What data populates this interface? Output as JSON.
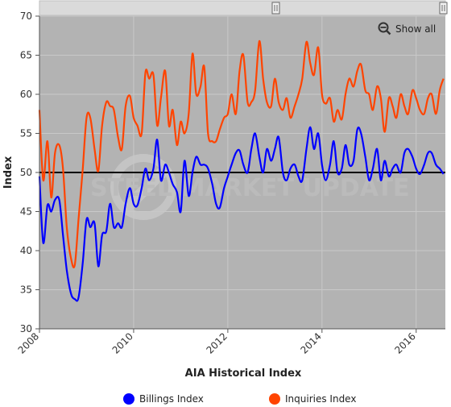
{
  "chart_data": {
    "type": "line",
    "title": "",
    "xlabel": "AIA Historical Index",
    "ylabel": "Index",
    "x_ticks": [
      "2008",
      "2010",
      "2012",
      "2014",
      "2016"
    ],
    "y_ticks": [
      "30",
      "35",
      "40",
      "45",
      "50",
      "55",
      "60",
      "65",
      "70"
    ],
    "xlim": [
      2008.0,
      2016.62
    ],
    "ylim": [
      30,
      70
    ],
    "reference_line": 50,
    "grid": true,
    "legend_position": "bottom",
    "watermark": "STEEL MARKET UPDATE",
    "series": [
      {
        "name": "Billings Index",
        "color": "#0000ff",
        "x": [
          2008.0,
          2008.08,
          2008.17,
          2008.25,
          2008.33,
          2008.42,
          2008.5,
          2008.58,
          2008.67,
          2008.75,
          2008.83,
          2008.92,
          2009.0,
          2009.08,
          2009.17,
          2009.25,
          2009.33,
          2009.42,
          2009.5,
          2009.58,
          2009.67,
          2009.75,
          2009.83,
          2009.92,
          2010.0,
          2010.08,
          2010.17,
          2010.25,
          2010.33,
          2010.42,
          2010.5,
          2010.58,
          2010.67,
          2010.75,
          2010.83,
          2010.92,
          2011.0,
          2011.08,
          2011.17,
          2011.25,
          2011.33,
          2011.42,
          2011.5,
          2011.58,
          2011.67,
          2011.75,
          2011.83,
          2011.92,
          2012.0,
          2012.08,
          2012.17,
          2012.25,
          2012.33,
          2012.42,
          2012.5,
          2012.58,
          2012.67,
          2012.75,
          2012.83,
          2012.92,
          2013.0,
          2013.08,
          2013.17,
          2013.25,
          2013.33,
          2013.42,
          2013.5,
          2013.58,
          2013.67,
          2013.75,
          2013.83,
          2013.92,
          2014.0,
          2014.08,
          2014.17,
          2014.25,
          2014.33,
          2014.42,
          2014.5,
          2014.58,
          2014.67,
          2014.75,
          2014.83,
          2014.92,
          2015.0,
          2015.08,
          2015.17,
          2015.25,
          2015.33,
          2015.42,
          2015.5,
          2015.58,
          2015.67,
          2015.75,
          2015.83,
          2015.92,
          2016.0,
          2016.08,
          2016.17,
          2016.25,
          2016.33,
          2016.42,
          2016.5,
          2016.58
        ],
        "values": [
          49.5,
          41.0,
          45.8,
          45.0,
          46.5,
          46.5,
          42.0,
          37.5,
          34.5,
          33.8,
          34.0,
          38.5,
          44.0,
          43.0,
          43.5,
          38.0,
          42.0,
          42.5,
          46.0,
          43.0,
          43.5,
          43.0,
          46.0,
          48.0,
          46.0,
          45.8,
          48.0,
          50.5,
          49.0,
          50.5,
          54.2,
          49.0,
          51.0,
          50.0,
          48.5,
          47.5,
          45.0,
          51.5,
          47.0,
          50.0,
          52.0,
          51.0,
          51.0,
          50.5,
          48.5,
          46.0,
          45.5,
          48.0,
          49.5,
          51.0,
          52.5,
          52.8,
          51.0,
          50.0,
          53.0,
          55.0,
          52.0,
          50.0,
          53.0,
          51.5,
          53.0,
          54.5,
          50.0,
          49.0,
          50.5,
          51.0,
          49.5,
          49.0,
          53.0,
          55.8,
          53.0,
          55.0,
          51.0,
          49.0,
          51.0,
          54.0,
          50.0,
          50.5,
          53.5,
          51.0,
          51.5,
          55.5,
          55.0,
          52.0,
          49.0,
          50.5,
          53.0,
          49.0,
          51.5,
          49.5,
          50.5,
          51.0,
          50.0,
          52.5,
          53.0,
          52.0,
          50.5,
          49.8,
          51.0,
          52.5,
          52.5,
          51.0,
          50.5,
          49.8
        ]
      },
      {
        "name": "Inquiries Index",
        "color": "#ff4400",
        "x": [
          2008.0,
          2008.08,
          2008.17,
          2008.25,
          2008.33,
          2008.42,
          2008.5,
          2008.58,
          2008.67,
          2008.75,
          2008.83,
          2008.92,
          2009.0,
          2009.08,
          2009.17,
          2009.25,
          2009.33,
          2009.42,
          2009.5,
          2009.58,
          2009.67,
          2009.75,
          2009.83,
          2009.92,
          2010.0,
          2010.08,
          2010.17,
          2010.25,
          2010.33,
          2010.42,
          2010.5,
          2010.58,
          2010.67,
          2010.75,
          2010.83,
          2010.92,
          2011.0,
          2011.08,
          2011.17,
          2011.25,
          2011.33,
          2011.42,
          2011.5,
          2011.58,
          2011.67,
          2011.75,
          2011.83,
          2011.92,
          2012.0,
          2012.08,
          2012.17,
          2012.25,
          2012.33,
          2012.42,
          2012.5,
          2012.58,
          2012.67,
          2012.75,
          2012.83,
          2012.92,
          2013.0,
          2013.08,
          2013.17,
          2013.25,
          2013.33,
          2013.42,
          2013.5,
          2013.58,
          2013.67,
          2013.75,
          2013.83,
          2013.92,
          2014.0,
          2014.08,
          2014.17,
          2014.25,
          2014.33,
          2014.42,
          2014.5,
          2014.58,
          2014.67,
          2014.75,
          2014.83,
          2014.92,
          2015.0,
          2015.08,
          2015.17,
          2015.25,
          2015.33,
          2015.42,
          2015.5,
          2015.58,
          2015.67,
          2015.75,
          2015.83,
          2015.92,
          2016.0,
          2016.08,
          2016.17,
          2016.25,
          2016.33,
          2016.42,
          2016.5,
          2016.58
        ],
        "values": [
          58.0,
          49.0,
          54.0,
          46.8,
          52.5,
          53.5,
          50.5,
          43.0,
          39.0,
          38.2,
          44.0,
          50.5,
          57.0,
          57.0,
          53.0,
          50.2,
          56.0,
          59.0,
          58.5,
          58.0,
          54.5,
          53.0,
          58.5,
          59.8,
          57.0,
          56.0,
          55.0,
          62.8,
          62.0,
          62.5,
          56.0,
          59.5,
          63.0,
          56.0,
          58.0,
          53.5,
          56.5,
          55.0,
          57.5,
          65.2,
          60.0,
          61.0,
          63.5,
          55.0,
          54.0,
          54.0,
          55.5,
          57.0,
          57.5,
          60.0,
          57.5,
          63.0,
          65.0,
          59.0,
          59.0,
          60.5,
          66.8,
          62.0,
          59.0,
          58.5,
          62.0,
          59.0,
          58.0,
          59.5,
          57.0,
          58.5,
          60.0,
          62.0,
          66.7,
          64.0,
          62.5,
          66.0,
          60.0,
          58.8,
          59.5,
          56.5,
          58.0,
          56.8,
          60.0,
          62.0,
          61.0,
          63.0,
          63.8,
          60.5,
          60.0,
          58.0,
          61.0,
          59.5,
          55.2,
          59.5,
          58.5,
          57.0,
          60.0,
          58.5,
          57.5,
          60.5,
          59.5,
          58.0,
          57.5,
          59.5,
          60.0,
          57.5,
          60.5,
          62.0
        ]
      }
    ]
  },
  "legend": {
    "items": [
      {
        "label": "Billings Index",
        "color": "#0000ff"
      },
      {
        "label": "Inquiries Index",
        "color": "#ff4400"
      }
    ]
  },
  "toolbar": {
    "show_all_label": "Show all",
    "show_all_icon": "zoom-out-magnifier-icon"
  },
  "scrollbar": {
    "handle_icon": "grip-handle-icon"
  },
  "colors": {
    "plot_background": "#b3b3b3",
    "reference_line": "#000000",
    "gridline": "#c9c9c9"
  }
}
